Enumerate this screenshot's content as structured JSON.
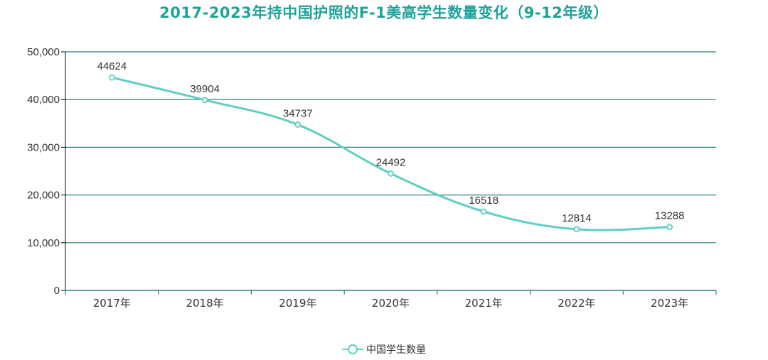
{
  "chart_data": {
    "type": "line",
    "title": "2017-2023年持中国护照的F-1美高学生数量变化（9-12年级）",
    "categories": [
      "2017年",
      "2018年",
      "2019年",
      "2020年",
      "2021年",
      "2022年",
      "2023年"
    ],
    "series": [
      {
        "name": "中国学生数量",
        "values": [
          44624,
          39904,
          34737,
          24492,
          16518,
          12814,
          13288
        ]
      }
    ],
    "ylim": [
      0,
      50000
    ],
    "yticks": [
      0,
      10000,
      20000,
      30000,
      40000,
      50000
    ],
    "ytick_labels": [
      "0",
      "10,000",
      "20,000",
      "30,000",
      "40,000",
      "50,000"
    ],
    "grid": true,
    "legend": "bottom-center",
    "colors": {
      "line": "#5fcfc3",
      "grid": "#2f7f7a",
      "title": "#1fa29a"
    }
  }
}
